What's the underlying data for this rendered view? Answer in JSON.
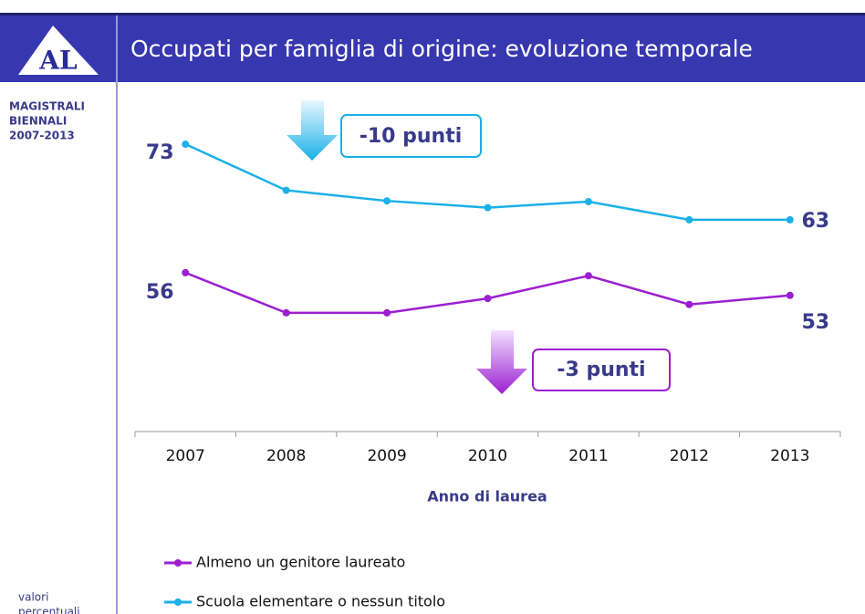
{
  "header": {
    "logo": "AL",
    "title": "Occupati per famiglia di origine: evoluzione temporale"
  },
  "sidebar": {
    "lines": [
      "MAGISTRALI",
      "BIENNALI",
      "2007-2013"
    ],
    "note": [
      "valori",
      "percentuali"
    ]
  },
  "chart_data": {
    "type": "line",
    "xlabel": "Anno di laurea",
    "categories": [
      "2007",
      "2008",
      "2009",
      "2010",
      "2011",
      "2012",
      "2013"
    ],
    "series": [
      {
        "name": "Almeno un genitore laureato",
        "color": "#9b1fd1",
        "values": [
          56,
          50.7,
          50.7,
          52.6,
          55.6,
          51.8,
          53
        ],
        "value_labels": [
          "56",
          null,
          null,
          null,
          null,
          null,
          "53"
        ]
      },
      {
        "name": "Scuola elementare o nessun titolo",
        "color": "#1ab0e8",
        "values": [
          73,
          66.9,
          65.5,
          64.6,
          65.4,
          63,
          63
        ],
        "value_labels": [
          "73",
          null,
          null,
          null,
          null,
          null,
          "63"
        ]
      }
    ],
    "ylim": [
      35,
      80
    ],
    "annotations": [
      "-3 punti",
      "-10 punti"
    ]
  }
}
